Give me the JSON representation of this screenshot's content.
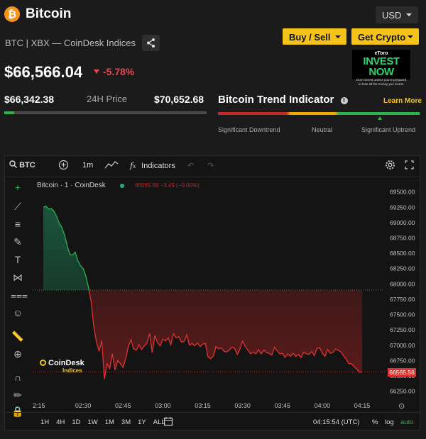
{
  "header": {
    "logo_glyph": "₿",
    "title": "Bitcoin",
    "currency": "USD",
    "subtitle": "BTC | XBX — CoinDesk Indices",
    "buy_sell_label": "Buy / Sell",
    "get_crypto_label": "Get Crypto",
    "ad": {
      "brand": "eToro",
      "headline": "INVEST NOW",
      "disclaimer": "Don't invest unless you're prepared to lose all the money you invest."
    },
    "price": "$66,566.04",
    "change": "-5.78%"
  },
  "range": {
    "low": "$66,342.38",
    "label": "24H Price",
    "high": "$70,652.68",
    "position": 0.05
  },
  "trend": {
    "title": "Bitcoin Trend Indicator",
    "learn_more": "Learn More",
    "labels": [
      "Significant Downtrend",
      "Neutral",
      "Significant Uptrend"
    ]
  },
  "toolbar": {
    "symbol": "BTC",
    "interval": "1m",
    "indicators": "Indicators"
  },
  "legend": {
    "series": "Bitcoin · 1 · CoinDesk",
    "ohlc": "66565.56  −3.45 (−0.00%)"
  },
  "watermark": {
    "line1": "CoinDesk",
    "line2": "Indices"
  },
  "bottom": {
    "ranges": [
      "1H",
      "4H",
      "1D",
      "1W",
      "1M",
      "3M",
      "1Y",
      "ALL"
    ],
    "clock": "04:15:54 (UTC)",
    "percent": "%",
    "log": "log",
    "auto": "auto"
  },
  "colors": {
    "accent": "#f5c318",
    "up": "#2bb24c",
    "down": "#e03131",
    "bitcoin": "#f7931a"
  },
  "chart_data": {
    "type": "area",
    "series_name": "Bitcoin · 1 · CoinDesk",
    "x_ticks": [
      "2:15",
      "02:30",
      "02:45",
      "03:00",
      "03:15",
      "03:30",
      "03:45",
      "04:00",
      "04:15"
    ],
    "y_ticks": [
      69500,
      69250,
      69000,
      68750,
      68500,
      68250,
      68000,
      67750,
      67500,
      67250,
      67000,
      66750,
      66500,
      66250
    ],
    "ylim": [
      66200,
      69600
    ],
    "baseline": 67900,
    "last_price": 66565.56,
    "points": [
      [
        "02:15",
        69250
      ],
      [
        "02:16",
        69270
      ],
      [
        "02:17",
        69220
      ],
      [
        "02:18",
        69230
      ],
      [
        "02:19",
        69190
      ],
      [
        "02:20",
        69100
      ],
      [
        "02:21",
        68990
      ],
      [
        "02:22",
        68920
      ],
      [
        "02:23",
        68800
      ],
      [
        "02:24",
        68620
      ],
      [
        "02:25",
        68480
      ],
      [
        "02:26",
        68470
      ],
      [
        "02:27",
        68520
      ],
      [
        "02:28",
        68380
      ],
      [
        "02:29",
        68300
      ],
      [
        "02:30",
        68250
      ],
      [
        "02:31",
        68130
      ],
      [
        "02:32",
        67950
      ],
      [
        "02:33",
        67720
      ],
      [
        "02:34",
        67300
      ],
      [
        "02:35",
        67060
      ],
      [
        "02:36",
        66900
      ],
      [
        "02:37",
        67080
      ],
      [
        "02:38",
        66450
      ],
      [
        "02:39",
        66700
      ],
      [
        "02:40",
        66620
      ],
      [
        "02:41",
        66860
      ],
      [
        "02:42",
        66600
      ],
      [
        "02:43",
        66750
      ],
      [
        "02:44",
        66700
      ],
      [
        "02:45",
        66640
      ],
      [
        "02:46",
        66780
      ],
      [
        "02:47",
        66980
      ],
      [
        "02:48",
        67090
      ],
      [
        "02:49",
        66940
      ],
      [
        "02:50",
        66920
      ],
      [
        "02:51",
        67010
      ],
      [
        "02:52",
        66930
      ],
      [
        "02:53",
        66990
      ],
      [
        "02:54",
        67030
      ],
      [
        "02:55",
        67190
      ],
      [
        "02:56",
        66880
      ],
      [
        "02:57",
        67160
      ],
      [
        "02:58",
        67040
      ],
      [
        "02:59",
        66990
      ],
      [
        "03:00",
        67100
      ],
      [
        "03:01",
        67070
      ],
      [
        "03:02",
        67120
      ],
      [
        "03:03",
        67010
      ],
      [
        "03:04",
        67190
      ],
      [
        "03:05",
        67120
      ],
      [
        "03:06",
        67140
      ],
      [
        "03:07",
        67050
      ],
      [
        "03:08",
        67060
      ],
      [
        "03:09",
        67170
      ],
      [
        "03:10",
        67000
      ],
      [
        "03:11",
        67030
      ],
      [
        "03:12",
        66990
      ],
      [
        "03:13",
        67040
      ],
      [
        "03:14",
        66980
      ],
      [
        "03:15",
        67020
      ],
      [
        "03:16",
        67030
      ],
      [
        "03:17",
        66810
      ],
      [
        "03:18",
        66780
      ],
      [
        "03:19",
        66820
      ],
      [
        "03:20",
        66980
      ],
      [
        "03:21",
        66940
      ],
      [
        "03:22",
        66960
      ],
      [
        "03:23",
        66900
      ],
      [
        "03:24",
        66890
      ],
      [
        "03:25",
        66920
      ],
      [
        "03:26",
        66970
      ],
      [
        "03:27",
        66950
      ],
      [
        "03:28",
        66850
      ],
      [
        "03:29",
        66940
      ],
      [
        "03:30",
        67070
      ],
      [
        "03:31",
        66980
      ],
      [
        "03:32",
        66920
      ],
      [
        "03:33",
        66860
      ],
      [
        "03:34",
        66890
      ],
      [
        "03:35",
        66860
      ],
      [
        "03:36",
        66930
      ],
      [
        "03:37",
        66860
      ],
      [
        "03:38",
        66920
      ],
      [
        "03:39",
        66880
      ],
      [
        "03:40",
        66870
      ],
      [
        "03:41",
        66840
      ],
      [
        "03:42",
        66970
      ],
      [
        "03:43",
        66910
      ],
      [
        "03:44",
        66860
      ],
      [
        "03:45",
        66870
      ],
      [
        "03:46",
        66800
      ],
      [
        "03:47",
        66860
      ],
      [
        "03:48",
        66820
      ],
      [
        "03:49",
        66870
      ],
      [
        "03:50",
        66820
      ],
      [
        "03:51",
        66850
      ],
      [
        "03:52",
        66800
      ],
      [
        "03:53",
        66890
      ],
      [
        "03:54",
        66860
      ],
      [
        "03:55",
        66850
      ],
      [
        "03:56",
        66900
      ],
      [
        "03:57",
        66830
      ],
      [
        "03:58",
        66950
      ],
      [
        "03:59",
        66960
      ],
      [
        "04:00",
        66870
      ],
      [
        "04:01",
        66820
      ],
      [
        "04:02",
        66930
      ],
      [
        "04:03",
        66870
      ],
      [
        "04:04",
        66880
      ],
      [
        "04:05",
        66940
      ],
      [
        "04:06",
        66920
      ],
      [
        "04:07",
        66890
      ],
      [
        "04:08",
        66830
      ],
      [
        "04:09",
        66770
      ],
      [
        "04:10",
        66700
      ],
      [
        "04:11",
        66700
      ],
      [
        "04:12",
        66650
      ],
      [
        "04:13",
        66610
      ],
      [
        "04:14",
        66560
      ],
      [
        "04:15",
        66566
      ]
    ]
  }
}
